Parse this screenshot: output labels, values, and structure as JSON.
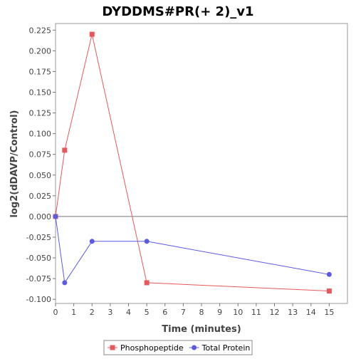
{
  "chart_data": {
    "type": "line",
    "title": "DYDDMS#PR(+ 2)_v1",
    "xlabel": "Time (minutes)",
    "ylabel": "log2(dDAVP/Control)",
    "xlim": [
      0,
      16
    ],
    "ylim": [
      -0.105,
      0.233
    ],
    "x_ticks": [
      0,
      1,
      2,
      3,
      4,
      5,
      6,
      7,
      8,
      9,
      10,
      11,
      12,
      13,
      14,
      15
    ],
    "y_ticks": [
      -0.1,
      -0.075,
      -0.05,
      -0.025,
      0.0,
      0.025,
      0.05,
      0.075,
      0.1,
      0.125,
      0.15,
      0.175,
      0.2,
      0.225
    ],
    "y_tick_labels": [
      "-0.100",
      "-0.075",
      "-0.050",
      "-0.025",
      "0.000",
      "0.025",
      "0.050",
      "0.075",
      "0.100",
      "0.125",
      "0.150",
      "0.175",
      "0.200",
      "0.225"
    ],
    "grid": false,
    "zero_line": true,
    "legend_position": "bottom",
    "series": [
      {
        "name": "Phosphopeptide",
        "color": "#e8585a",
        "marker": "square",
        "x": [
          0,
          0.5,
          2,
          5,
          15
        ],
        "y": [
          0.0,
          0.08,
          0.22,
          -0.08,
          -0.09
        ]
      },
      {
        "name": "Total Protein",
        "color": "#5a5ae8",
        "marker": "circle",
        "x": [
          0,
          0.5,
          2,
          5,
          15
        ],
        "y": [
          0.0,
          -0.08,
          -0.03,
          -0.03,
          -0.07
        ]
      }
    ]
  }
}
